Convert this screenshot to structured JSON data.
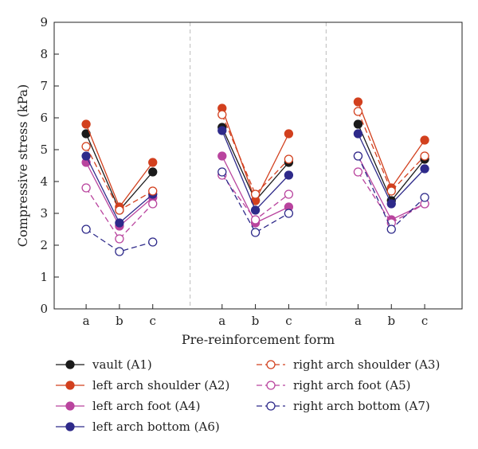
{
  "chart_data": {
    "type": "line",
    "ylabel": "Compressive stress (kPa)",
    "xlabel": "Pre-reinforcement form",
    "ylim": [
      0,
      9
    ],
    "yticks": [
      0,
      1,
      2,
      3,
      4,
      5,
      6,
      7,
      8,
      9
    ],
    "categories": [
      "a",
      "b",
      "c"
    ],
    "groups": 3,
    "legend_position": "bottom",
    "series": [
      {
        "name": "vault (A1)",
        "color": "#1a1a1a",
        "marker": "filled",
        "dash": false,
        "groups": [
          [
            5.5,
            3.1,
            4.3
          ],
          [
            5.7,
            3.4,
            4.6
          ],
          [
            5.8,
            3.4,
            4.7
          ]
        ]
      },
      {
        "name": "left arch shoulder (A2)",
        "color": "#d2401e",
        "marker": "filled",
        "dash": false,
        "groups": [
          [
            5.8,
            3.2,
            4.6
          ],
          [
            6.3,
            3.4,
            5.5
          ],
          [
            6.5,
            3.8,
            5.3
          ]
        ]
      },
      {
        "name": "left arch foot (A4)",
        "color": "#b9449e",
        "marker": "filled",
        "dash": false,
        "groups": [
          [
            4.6,
            2.6,
            3.5
          ],
          [
            4.8,
            2.7,
            3.2
          ],
          [
            4.8,
            2.8,
            3.3
          ]
        ]
      },
      {
        "name": "left arch bottom (A6)",
        "color": "#2e2a8a",
        "marker": "filled",
        "dash": false,
        "groups": [
          [
            4.8,
            2.7,
            3.6
          ],
          [
            5.6,
            3.1,
            4.2
          ],
          [
            5.5,
            3.3,
            4.4
          ]
        ]
      },
      {
        "name": "right arch shoulder (A3)",
        "color": "#d2401e",
        "marker": "open",
        "dash": true,
        "groups": [
          [
            5.1,
            3.1,
            3.7
          ],
          [
            6.1,
            3.6,
            4.7
          ],
          [
            6.2,
            3.7,
            4.8
          ]
        ]
      },
      {
        "name": "right arch foot (A5)",
        "color": "#b9449e",
        "marker": "open",
        "dash": true,
        "groups": [
          [
            3.8,
            2.2,
            3.3
          ],
          [
            4.2,
            2.8,
            3.6
          ],
          [
            4.3,
            2.7,
            3.3
          ]
        ]
      },
      {
        "name": "right arch bottom (A7)",
        "color": "#2e2a8a",
        "marker": "open",
        "dash": true,
        "groups": [
          [
            2.5,
            1.8,
            2.1
          ],
          [
            4.3,
            2.4,
            3.0
          ],
          [
            4.8,
            2.5,
            3.5
          ]
        ]
      }
    ]
  }
}
